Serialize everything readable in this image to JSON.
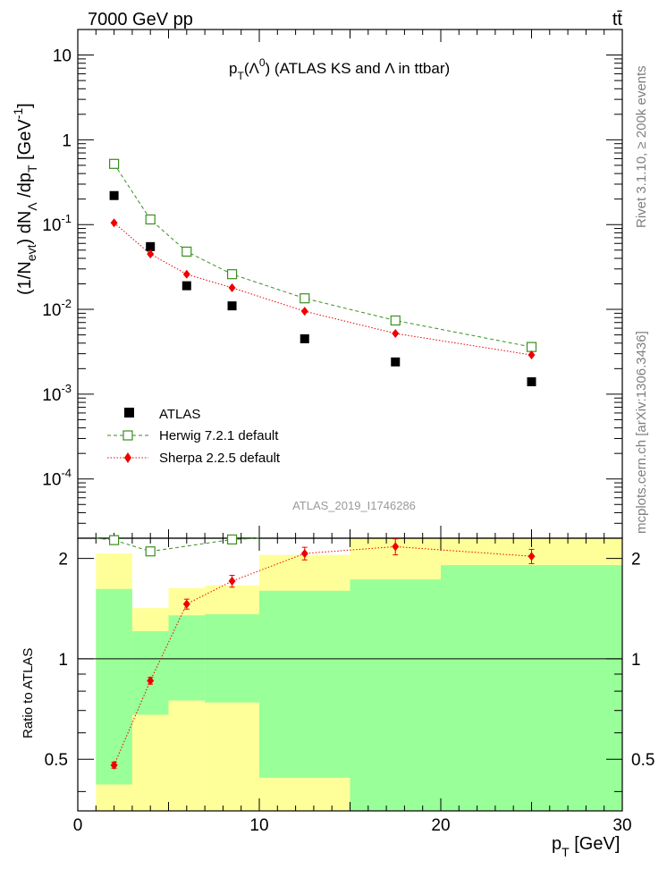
{
  "header": {
    "left": "7000 GeV pp",
    "right": "tt̄"
  },
  "side": {
    "rivet": "Rivet 3.1.10, ≥ 200k events",
    "mcplots": "mcplots.cern.ch [arXiv:1306.3436]"
  },
  "analysis_id": "ATLAS_2019_I1746286",
  "chart_data": [
    {
      "type": "scatter",
      "title": "pT(Λ0) (ATLAS KS and Λ in ttbar)",
      "ylabel": "(1/Nevt) dNΛ/dpT [GeV-1]",
      "ylog": true,
      "xlim": [
        0,
        30
      ],
      "ylim": [
        2e-05,
        20
      ],
      "legend_position": "lower-left",
      "series": [
        {
          "name": "ATLAS",
          "style": "black-square",
          "color": "#000000",
          "x": [
            2,
            4,
            6,
            8.5,
            12.5,
            17.5,
            25
          ],
          "y": [
            0.22,
            0.055,
            0.019,
            0.011,
            0.0045,
            0.0024,
            0.0014
          ]
        },
        {
          "name": "Herwig 7.2.1 default",
          "style": "open-square-dashed",
          "color": "#3a8e1e",
          "x": [
            2,
            4,
            6,
            8.5,
            12.5,
            17.5,
            25
          ],
          "y": [
            0.52,
            0.115,
            0.048,
            0.026,
            0.0135,
            0.0074,
            0.0036
          ]
        },
        {
          "name": "Sherpa 2.2.5 default",
          "style": "red-diamond-dotted",
          "color": "#ee0000",
          "x": [
            2,
            4,
            6,
            8.5,
            12.5,
            17.5,
            25
          ],
          "y": [
            0.105,
            0.045,
            0.026,
            0.018,
            0.0095,
            0.0052,
            0.0029
          ]
        }
      ]
    },
    {
      "type": "line",
      "ylabel": "Ratio to ATLAS",
      "ylog": true,
      "xlabel": "pT [GeV]",
      "xlim": [
        0,
        30
      ],
      "ylim": [
        0.35,
        2.3
      ],
      "xticks": [
        0,
        10,
        20,
        30
      ],
      "yticks": [
        0.5,
        1,
        2
      ],
      "reference_line": 1,
      "bands": {
        "edges": [
          1,
          3,
          5,
          7,
          10,
          15,
          20,
          30
        ],
        "inner_lo": [
          0.42,
          0.68,
          0.75,
          0.74,
          0.44,
          0.35,
          0.35
        ],
        "inner_hi": [
          1.62,
          1.21,
          1.35,
          1.36,
          1.6,
          1.73,
          1.91
        ],
        "outer_lo": [
          0.35,
          0.35,
          0.35,
          0.35,
          0.35,
          0.35,
          0.35
        ],
        "outer_hi": [
          2.07,
          1.42,
          1.63,
          1.66,
          2.05,
          2.3,
          2.3
        ]
      },
      "series": [
        {
          "name": "Herwig 7.2.1 default",
          "color": "#3a8e1e",
          "x": [
            2,
            4,
            8.5
          ],
          "y": [
            2.27,
            2.1,
            2.28
          ]
        },
        {
          "name": "Sherpa 2.2.5 default",
          "color": "#ee0000",
          "x": [
            2,
            4,
            6,
            8.5,
            12.5,
            17.5,
            25
          ],
          "y": [
            0.48,
            0.86,
            1.46,
            1.71,
            2.07,
            2.17,
            2.03
          ],
          "err": [
            0.01,
            0.02,
            0.05,
            0.07,
            0.09,
            0.12,
            0.1
          ]
        }
      ]
    }
  ]
}
